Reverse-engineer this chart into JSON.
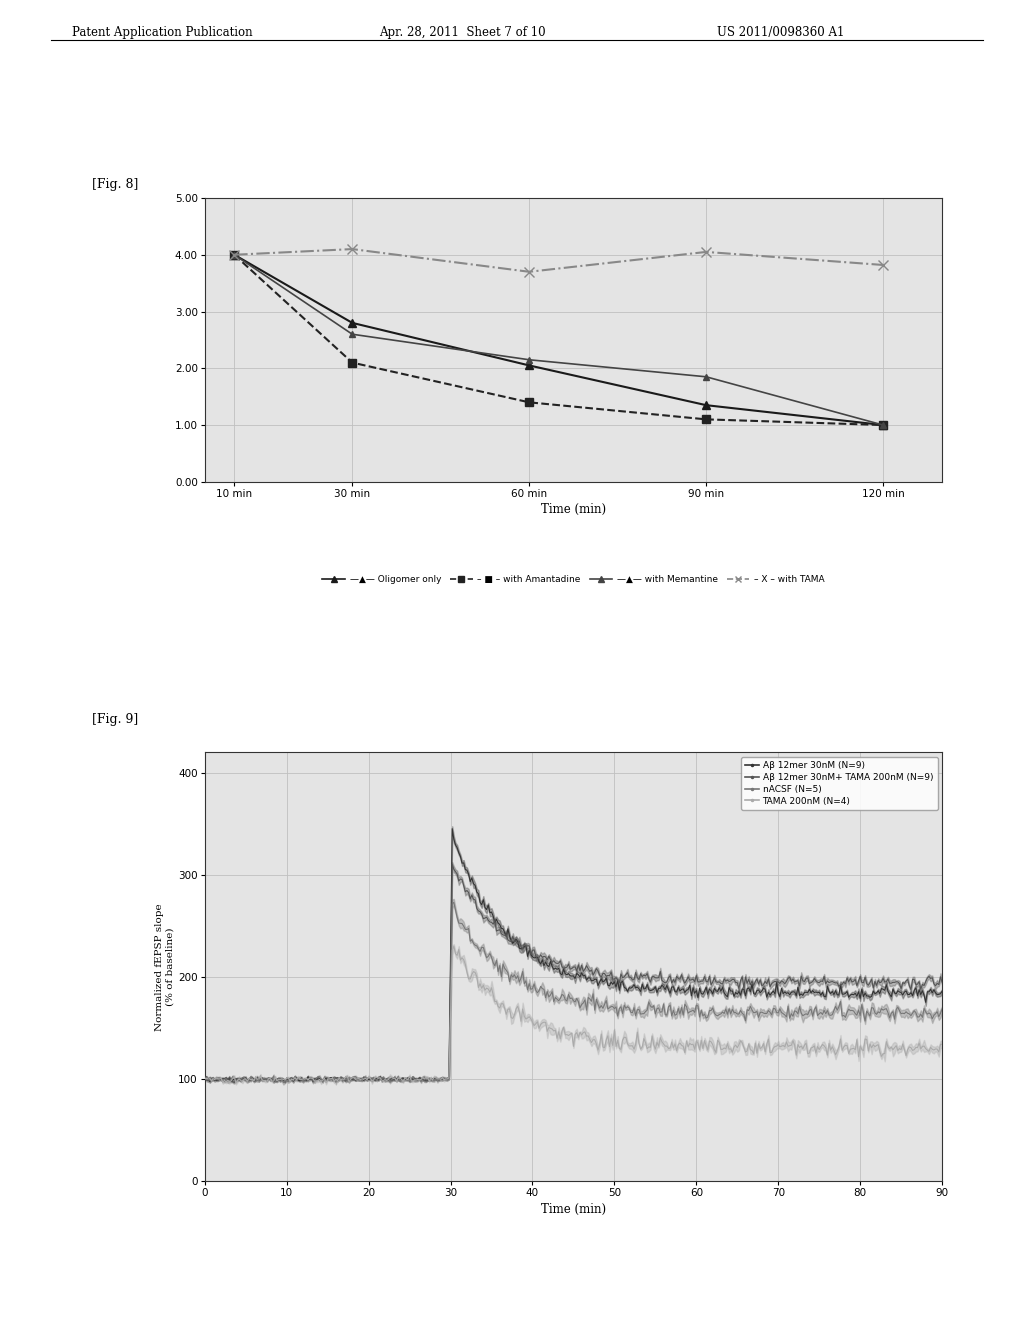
{
  "header_left": "Patent Application Publication",
  "header_mid": "Apr. 28, 2011  Sheet 7 of 10",
  "header_right": "US 2011/0098360 A1",
  "fig8_label": "[Fig. 8]",
  "fig9_label": "[Fig. 9]",
  "page_bg": "#d8d8d8",
  "fig8": {
    "xlabel": "Time (min)",
    "xtick_labels": [
      "10 min",
      "30 min",
      "60 min",
      "90 min",
      "120 min"
    ],
    "xtick_values": [
      10,
      30,
      60,
      90,
      120
    ],
    "ytick_labels": [
      "0.00",
      "1.00",
      "2.00",
      "3.00",
      "4.00",
      "5.00"
    ],
    "ytick_values": [
      0.0,
      1.0,
      2.0,
      3.0,
      4.0,
      5.0
    ],
    "ylim": [
      0.0,
      5.0
    ],
    "xlim": [
      5,
      130
    ],
    "plot_bg": "#e8e8e8",
    "series": [
      {
        "label": "Oligomer only",
        "x": [
          10,
          30,
          60,
          90,
          120
        ],
        "y": [
          4.0,
          2.8,
          2.05,
          1.35,
          1.0
        ],
        "color": "#1a1a1a",
        "linestyle": "-",
        "marker": "^",
        "ms": 6,
        "lw": 1.5
      },
      {
        "label": "with Amantadine",
        "x": [
          10,
          30,
          60,
          90,
          120
        ],
        "y": [
          4.0,
          2.1,
          1.4,
          1.1,
          1.0
        ],
        "color": "#222222",
        "linestyle": "--",
        "marker": "s",
        "ms": 6,
        "lw": 1.5
      },
      {
        "label": "with Memantine",
        "x": [
          10,
          30,
          60,
          90,
          120
        ],
        "y": [
          4.0,
          2.6,
          2.15,
          1.85,
          1.0
        ],
        "color": "#444444",
        "linestyle": "-",
        "marker": "^",
        "ms": 5,
        "lw": 1.2
      },
      {
        "label": "with TAMA",
        "x": [
          10,
          30,
          60,
          90,
          120
        ],
        "y": [
          4.0,
          4.1,
          3.7,
          4.05,
          3.82
        ],
        "color": "#888888",
        "linestyle": "-.",
        "marker": "x",
        "ms": 7,
        "lw": 1.5
      }
    ],
    "legend_entries": [
      {
        "marker": "^",
        "ls": "-",
        "color": "#1a1a1a",
        "label": "—▲— Oligomer only"
      },
      {
        "marker": "s",
        "ls": "--",
        "color": "#222222",
        "label": "– ■ – with Amantadine"
      },
      {
        "marker": "^",
        "ls": "-",
        "color": "#444444",
        "label": "—▲— with Memantine"
      },
      {
        "marker": "x",
        "ls": "--",
        "color": "#888888",
        "label": "– X – with TAMA"
      }
    ]
  },
  "fig9": {
    "xlabel": "Time (min)",
    "ylabel": "Normalized fEPSP slope\n(% of baseline)",
    "xtick_values": [
      0,
      10,
      20,
      30,
      40,
      50,
      60,
      70,
      80,
      90
    ],
    "ytick_values": [
      0,
      100,
      200,
      300,
      400
    ],
    "ylim": [
      0,
      420
    ],
    "xlim": [
      0,
      90
    ],
    "plot_bg": "#e8e8e8",
    "legend_labels": [
      "Aβ 12mer 30nM (N=9)",
      "Aβ 12mer 30nM+ TAMA 200nM (N=9)",
      "nACSF (N=5)",
      "TAMA 200nM (N=4)"
    ],
    "colors": [
      "#333333",
      "#555555",
      "#777777",
      "#aaaaaa"
    ],
    "peaks": [
      340,
      310,
      270,
      230
    ],
    "settles": [
      185,
      195,
      165,
      130
    ],
    "ns": [
      9,
      9,
      5,
      4
    ]
  }
}
